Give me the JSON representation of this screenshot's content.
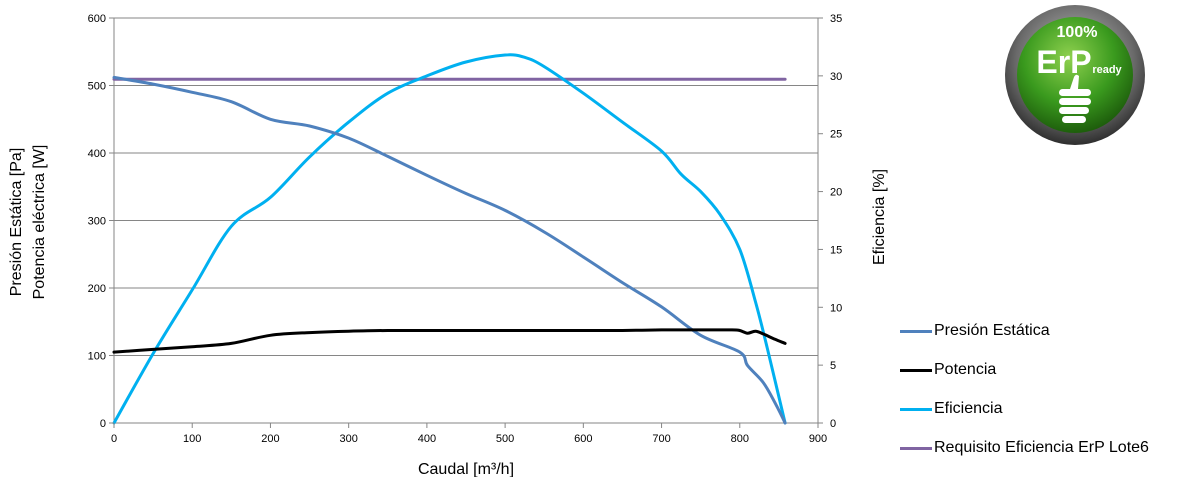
{
  "chart_data": {
    "type": "line",
    "x_axis": {
      "label": "Caudal [m³/h]",
      "range": [
        0,
        900
      ],
      "ticks": [
        0,
        100,
        200,
        300,
        400,
        500,
        600,
        700,
        800,
        900
      ]
    },
    "y_left": {
      "label_line1": "Presión Estática [Pa]",
      "label_line2": "Potencia eléctrica [W]",
      "range": [
        0,
        600
      ],
      "ticks": [
        0,
        100,
        200,
        300,
        400,
        500,
        600
      ]
    },
    "y_right": {
      "label": "Eficiencia [%]",
      "range": [
        0,
        35
      ],
      "ticks": [
        0,
        5,
        10,
        15,
        20,
        25,
        30,
        35
      ]
    },
    "grid": "horizontal",
    "legend_position": "bottom-right",
    "series": [
      {
        "name": "Presión Estática",
        "axis": "left",
        "color": "#4F81BD",
        "x": [
          0,
          50,
          100,
          150,
          200,
          250,
          300,
          350,
          400,
          450,
          500,
          550,
          600,
          650,
          700,
          750,
          800,
          810,
          830,
          845,
          858
        ],
        "y": [
          512,
          502,
          490,
          476,
          450,
          440,
          422,
          395,
          367,
          340,
          315,
          283,
          246,
          208,
          172,
          130,
          105,
          85,
          60,
          30,
          0
        ]
      },
      {
        "name": "Potencia",
        "axis": "left",
        "color": "#000000",
        "x": [
          0,
          50,
          100,
          150,
          200,
          250,
          300,
          350,
          400,
          450,
          500,
          550,
          600,
          650,
          700,
          750,
          790,
          800,
          810,
          820,
          830,
          845,
          858
        ],
        "y": [
          105,
          109,
          113,
          118,
          130,
          134,
          136,
          137,
          137,
          137,
          137,
          137,
          137,
          137,
          138,
          138,
          138,
          137,
          133,
          136,
          132,
          124,
          118
        ]
      },
      {
        "name": "Eficiencia",
        "axis": "right",
        "color": "#00B0F0",
        "x": [
          0,
          50,
          100,
          150,
          200,
          250,
          300,
          350,
          400,
          450,
          500,
          525,
          550,
          600,
          650,
          700,
          725,
          750,
          775,
          800,
          820,
          835,
          858
        ],
        "y": [
          0,
          6,
          11.5,
          17,
          19.5,
          23,
          26,
          28.5,
          30,
          31.2,
          31.8,
          31.6,
          30.8,
          28.5,
          26,
          23.5,
          21.5,
          20,
          18,
          15,
          10.5,
          6.5,
          0
        ]
      },
      {
        "name": "Requisito Eficiencia ErP Lote6",
        "axis": "right",
        "color": "#8064A2",
        "x": [
          0,
          858
        ],
        "y": [
          29.7,
          29.7
        ]
      }
    ]
  },
  "badge": {
    "top_text": "100%",
    "main_text": "ErP",
    "sub_text": "ready"
  }
}
